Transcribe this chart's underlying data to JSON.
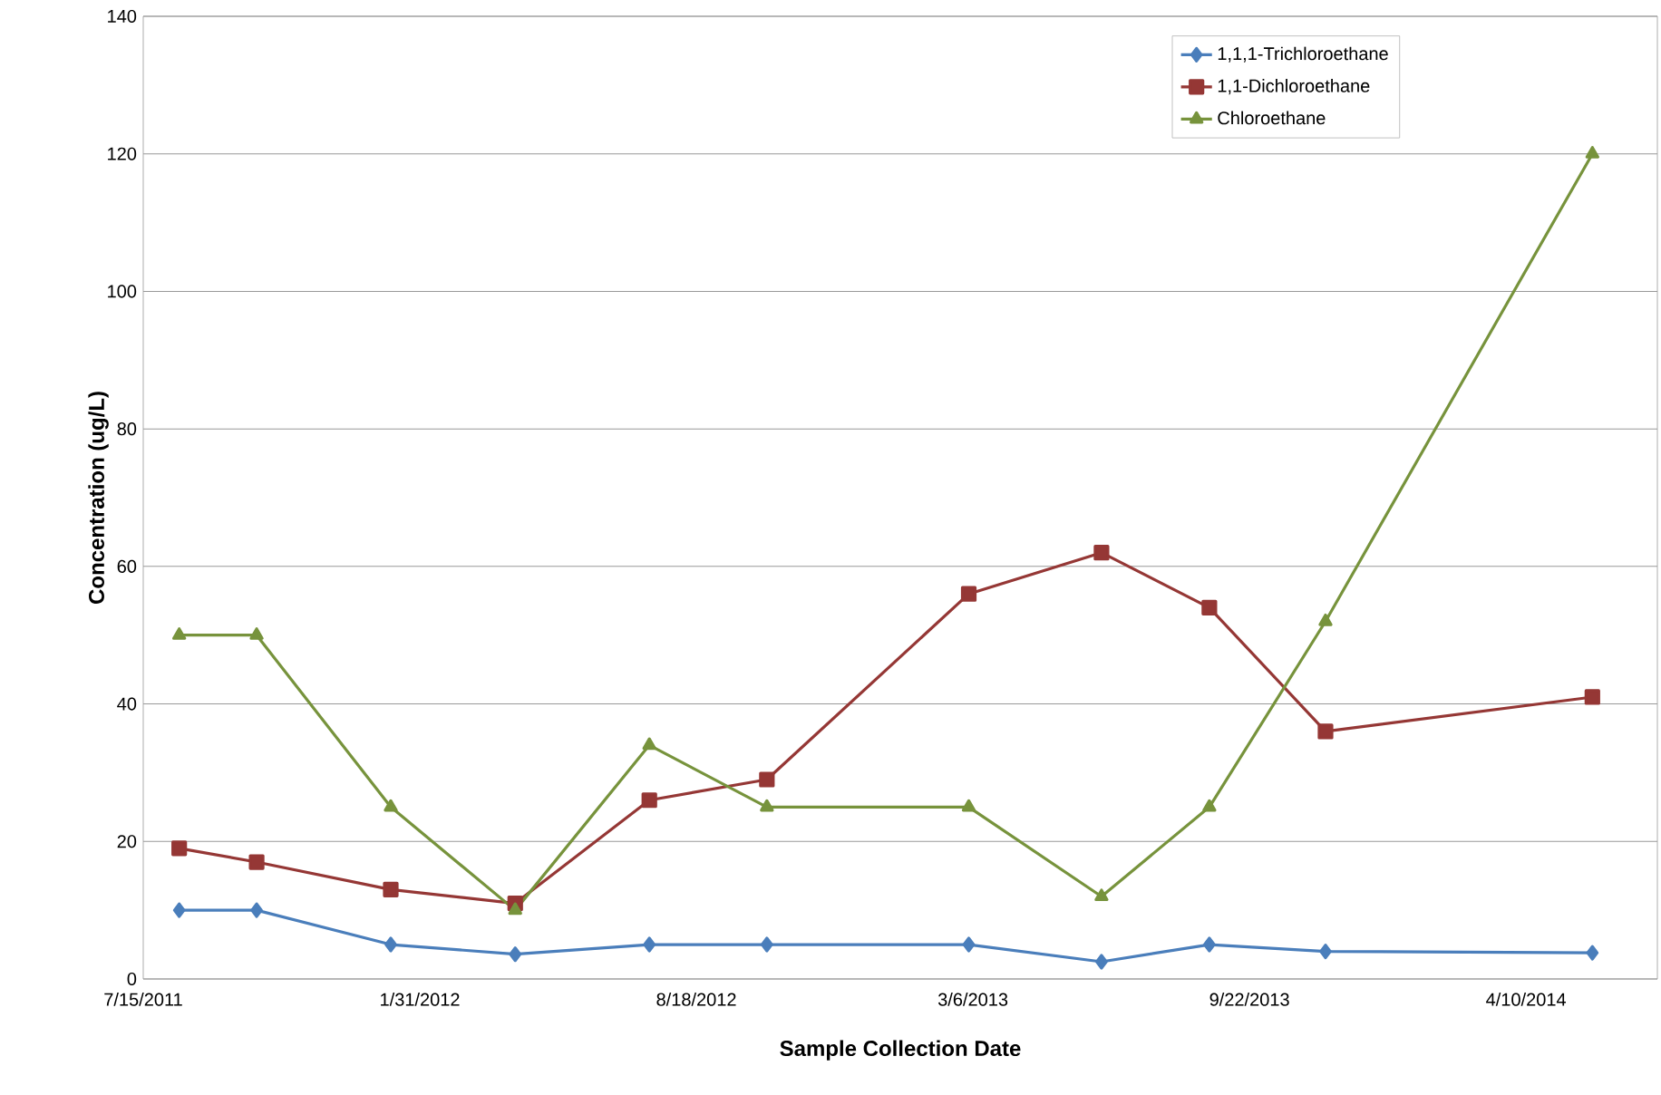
{
  "chart_data": {
    "type": "line",
    "xlabel": "Sample Collection Date",
    "ylabel": "Concentration (ug/L)",
    "x": [
      "2011-08-10",
      "2011-10-05",
      "2012-01-10",
      "2012-04-09",
      "2012-07-15",
      "2012-10-08",
      "2013-03-03",
      "2013-06-07",
      "2013-08-24",
      "2013-11-16",
      "2014-05-28"
    ],
    "series": [
      {
        "name": "1,1,1-Trichloroethane",
        "color": "#4a7ebb",
        "marker": "diamond",
        "values": [
          10,
          10,
          5,
          3.6,
          5,
          5,
          5,
          2.5,
          5,
          4,
          3.8
        ]
      },
      {
        "name": "1,1-Dichloroethane",
        "color": "#953735",
        "marker": "square",
        "values": [
          19,
          17,
          13,
          11,
          26,
          29,
          56,
          62,
          54,
          36,
          41
        ]
      },
      {
        "name": "Chloroethane",
        "color": "#77933c",
        "marker": "triangle",
        "values": [
          50,
          50,
          25,
          10,
          34,
          25,
          25,
          12,
          25,
          52,
          120
        ]
      }
    ],
    "xlim": [
      "2011-07-15",
      "2014-07-14"
    ],
    "xticks": [
      {
        "value": "2011-07-15",
        "label": "7/15/2011"
      },
      {
        "value": "2012-01-31",
        "label": "1/31/2012"
      },
      {
        "value": "2012-08-18",
        "label": "8/18/2012"
      },
      {
        "value": "2013-03-06",
        "label": "3/6/2013"
      },
      {
        "value": "2013-09-22",
        "label": "9/22/2013"
      },
      {
        "value": "2014-04-10",
        "label": "4/10/2014"
      }
    ],
    "ylim": [
      0,
      140
    ],
    "yticks": [
      0,
      20,
      40,
      60,
      80,
      100,
      120,
      140
    ],
    "grid": "y",
    "legend": "top right",
    "line_style": "solid"
  }
}
